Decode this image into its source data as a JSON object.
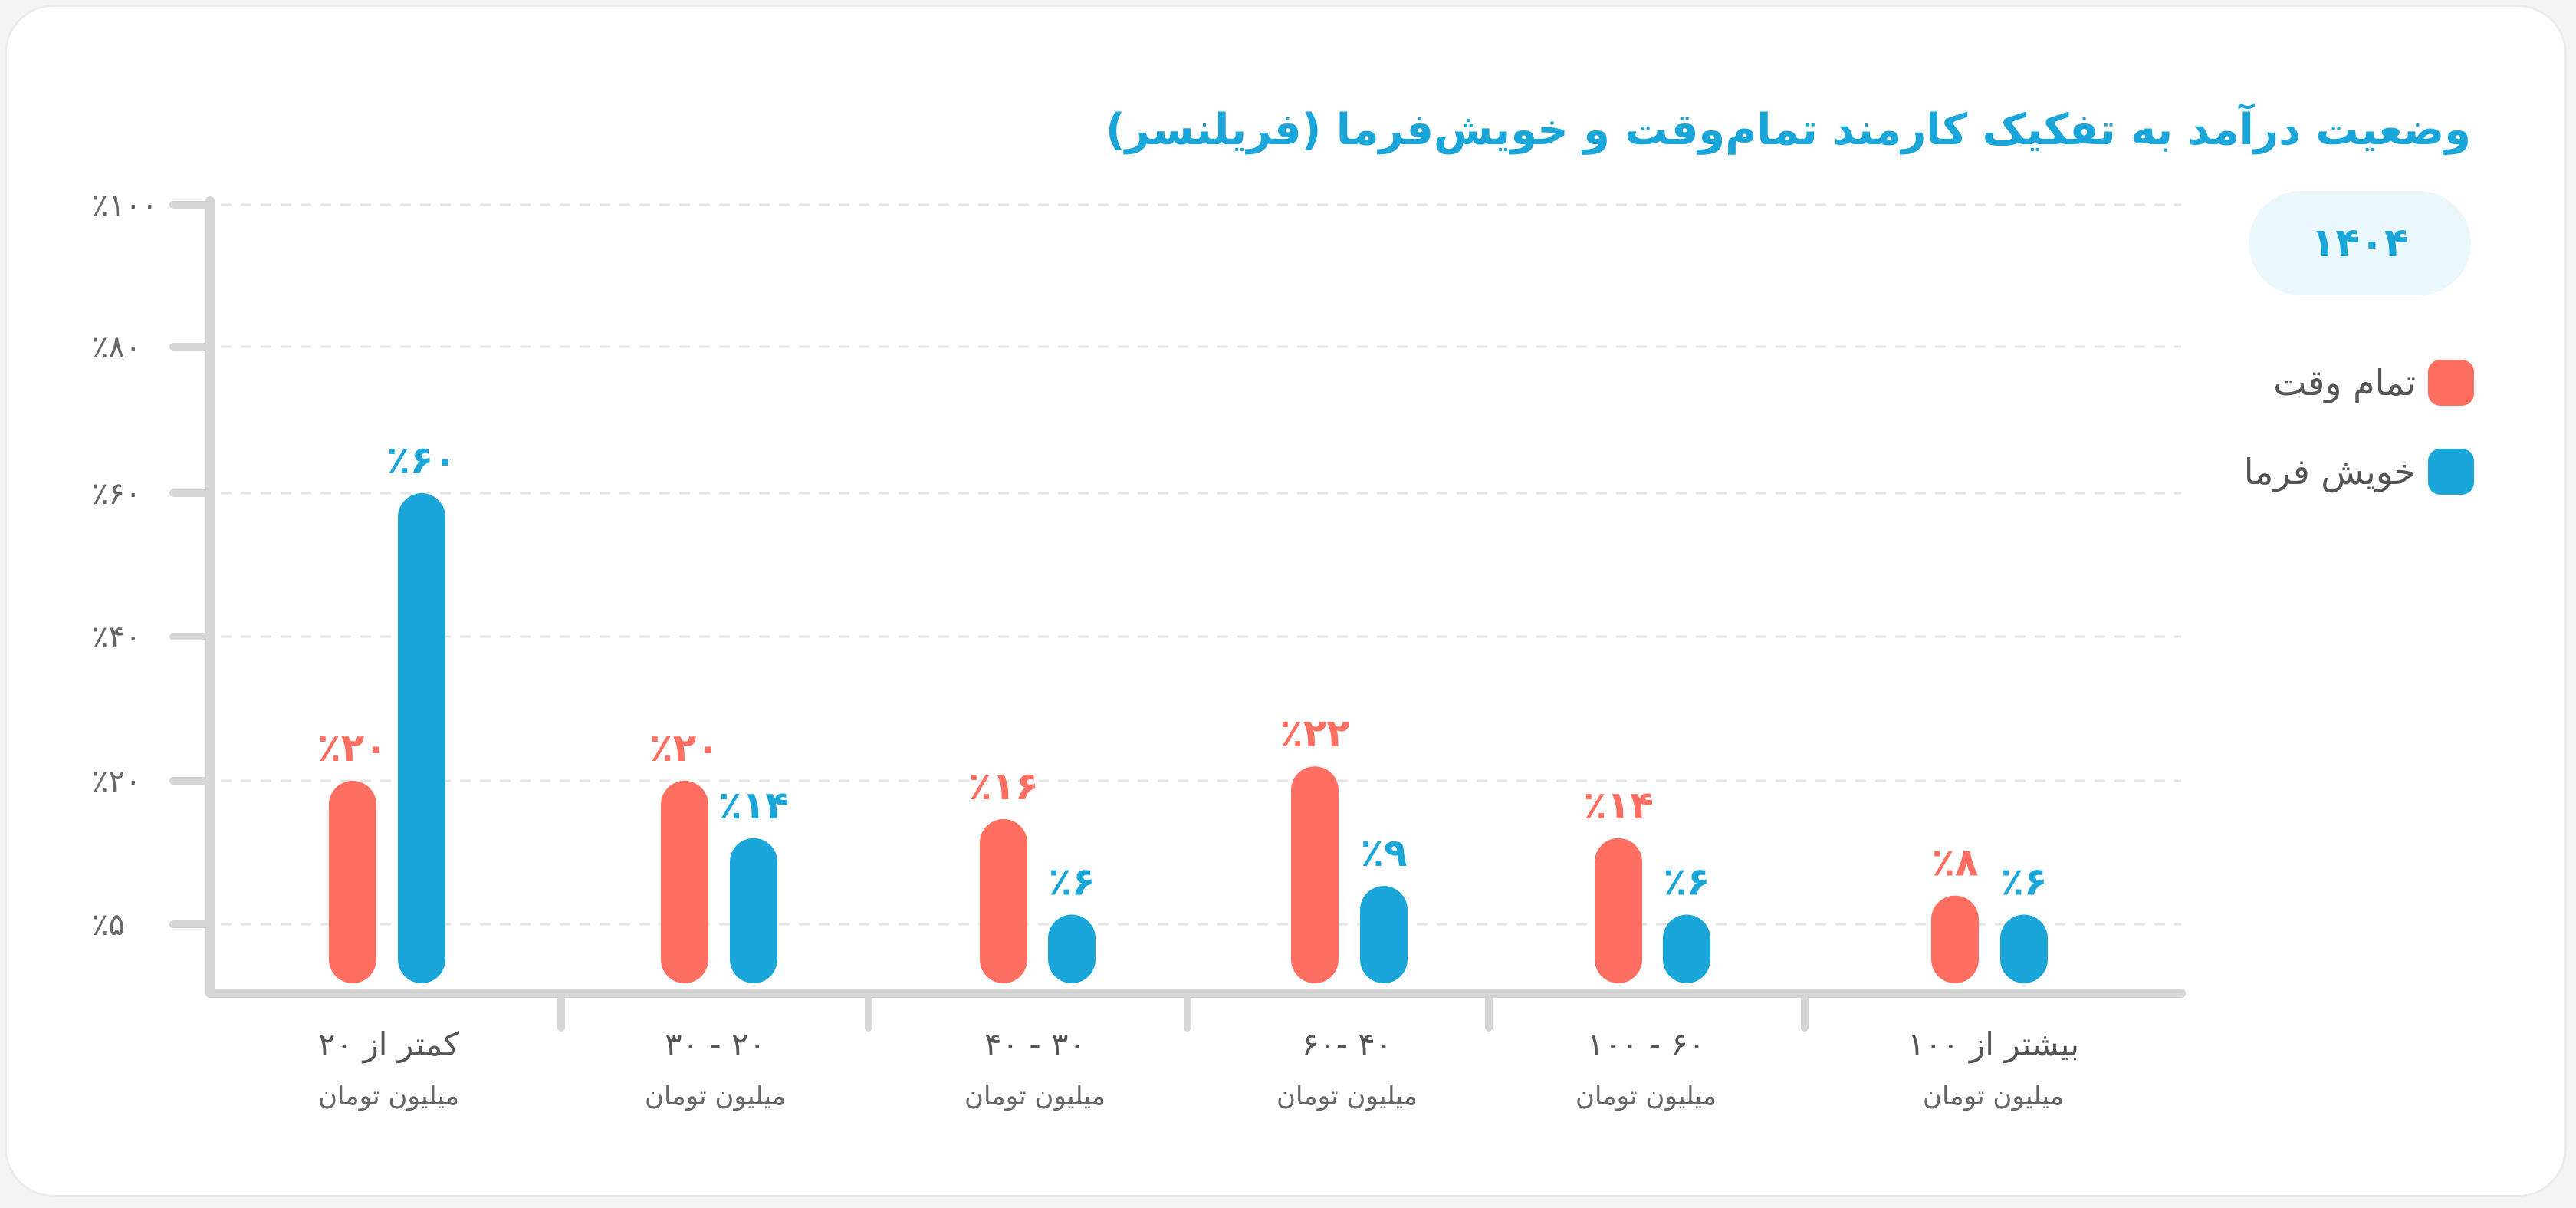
{
  "chart_data": {
    "type": "bar",
    "title": "وضعیت درآمد به تفکیک کارمند تمام‌وقت و خویش‌فرما (فریلنسر)",
    "subtitle": "۱۴۰۴",
    "xlabel": "",
    "ylabel": "",
    "ylim": [
      0,
      100
    ],
    "y_ticks": [
      {
        "value": 5,
        "label": "٪۵"
      },
      {
        "value": 20,
        "label": "٪۲۰"
      },
      {
        "value": 40,
        "label": "٪۴۰"
      },
      {
        "value": 60,
        "label": "٪۶۰"
      },
      {
        "value": 80,
        "label": "٪۸۰"
      },
      {
        "value": 100,
        "label": "٪۱۰۰"
      }
    ],
    "grid": true,
    "legend_position": "right",
    "categories": [
      {
        "label": "کمتر از ۲۰",
        "sub": "میلیون تومان"
      },
      {
        "label": "۲۰ - ۳۰",
        "sub": "میلیون تومان"
      },
      {
        "label": "۳۰ - ۴۰",
        "sub": "میلیون تومان"
      },
      {
        "label": "۴۰ -۶۰",
        "sub": "میلیون تومان"
      },
      {
        "label": "۶۰ - ۱۰۰",
        "sub": "میلیون تومان"
      },
      {
        "label": "بیشتر از ۱۰۰",
        "sub": "میلیون تومان"
      }
    ],
    "series": [
      {
        "name": "تمام وقت",
        "color": "#ff6f61",
        "values": [
          20,
          20,
          16,
          22,
          14,
          8
        ],
        "labels": [
          "٪۲۰",
          "٪۲۰",
          "٪۱۶",
          "٪۲۲",
          "٪۱۴",
          "٪۸"
        ]
      },
      {
        "name": "خویش فرما",
        "color": "#1ba6da",
        "values": [
          60,
          14,
          6,
          9,
          6,
          6
        ],
        "labels": [
          "٪۶۰",
          "٪۱۴",
          "٪۶",
          "٪۹",
          "٪۶",
          "٪۶"
        ]
      }
    ]
  }
}
